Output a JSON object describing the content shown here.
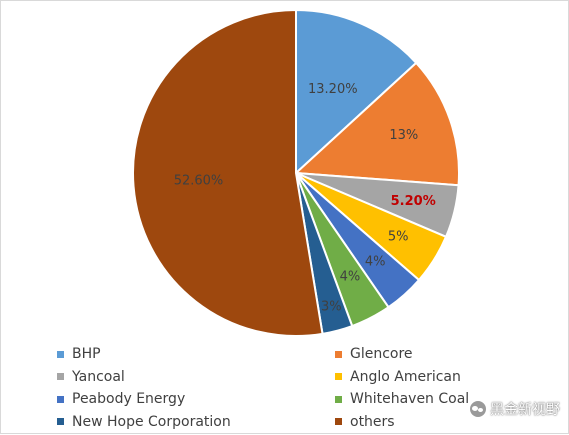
{
  "chart_data": {
    "type": "pie",
    "title": "",
    "start_angle_deg": 0,
    "direction": "clockwise",
    "slices": [
      {
        "name": "BHP",
        "value": 13.2,
        "label": "13.20%",
        "color": "#5b9bd5",
        "emphasis": false
      },
      {
        "name": "Glencore",
        "value": 13.0,
        "label": "13%",
        "color": "#ed7d31",
        "emphasis": false
      },
      {
        "name": "Yancoal",
        "value": 5.2,
        "label": "5.20%",
        "color": "#a5a5a5",
        "emphasis": true
      },
      {
        "name": "Anglo American",
        "value": 5.0,
        "label": "5%",
        "color": "#ffc000",
        "emphasis": false
      },
      {
        "name": "Peabody Energy",
        "value": 4.0,
        "label": "4%",
        "color": "#4472c4",
        "emphasis": false
      },
      {
        "name": "Whitehaven Coal",
        "value": 4.0,
        "label": "4%",
        "color": "#70ad47",
        "emphasis": false
      },
      {
        "name": "New Hope Corporation",
        "value": 3.0,
        "label": "3%",
        "color": "#255e91",
        "emphasis": false
      },
      {
        "name": "others",
        "value": 52.6,
        "label": "52.60%",
        "color": "#9e480e",
        "emphasis": false
      }
    ],
    "legend_placement": "bottom",
    "legend_columns": 2
  },
  "watermark": {
    "text": "黑金新视野",
    "icon": "wechat-icon"
  }
}
